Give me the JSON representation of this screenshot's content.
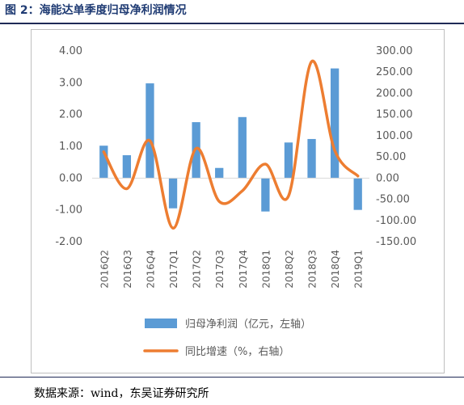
{
  "figure": {
    "title": "图 2：海能达单季度归母净利润情况",
    "source": "数据来源：wind，东吴证券研究所"
  },
  "colors": {
    "bars": "#5b9bd5",
    "line": "#ed7d31",
    "title": "#1f3b73",
    "rule": "#1f2a56"
  },
  "chart_data": {
    "type": "bar",
    "categories": [
      "2016Q2",
      "2016Q3",
      "2016Q4",
      "2017Q1",
      "2017Q2",
      "2017Q3",
      "2017Q4",
      "2018Q1",
      "2018Q2",
      "2018Q3",
      "2018Q4",
      "2019Q1"
    ],
    "series": [
      {
        "name": "归母净利润（亿元，左轴）",
        "type": "bar",
        "axis": "left",
        "values": [
          1.02,
          0.72,
          2.98,
          -0.95,
          1.76,
          0.32,
          1.92,
          -1.05,
          1.12,
          1.23,
          3.45,
          -1.0
        ]
      },
      {
        "name": "同比增速（%，右轴）",
        "type": "line",
        "axis": "right",
        "values": [
          62,
          -25,
          88,
          -118,
          70,
          -55,
          -30,
          33,
          -42,
          275,
          65,
          5
        ]
      }
    ],
    "left_axis": {
      "min": -2,
      "max": 4,
      "step": 1,
      "tick_labels": [
        "-2.00",
        "-1.00",
        "0.00",
        "1.00",
        "2.00",
        "3.00",
        "4.00"
      ]
    },
    "right_axis": {
      "min": -150,
      "max": 300,
      "step": 50,
      "tick_labels": [
        "-150.00",
        "-100.00",
        "-50.00",
        "0.00",
        "50.00",
        "100.00",
        "150.00",
        "200.00",
        "250.00",
        "300.00"
      ]
    },
    "grid": false,
    "legend_position": "bottom"
  }
}
